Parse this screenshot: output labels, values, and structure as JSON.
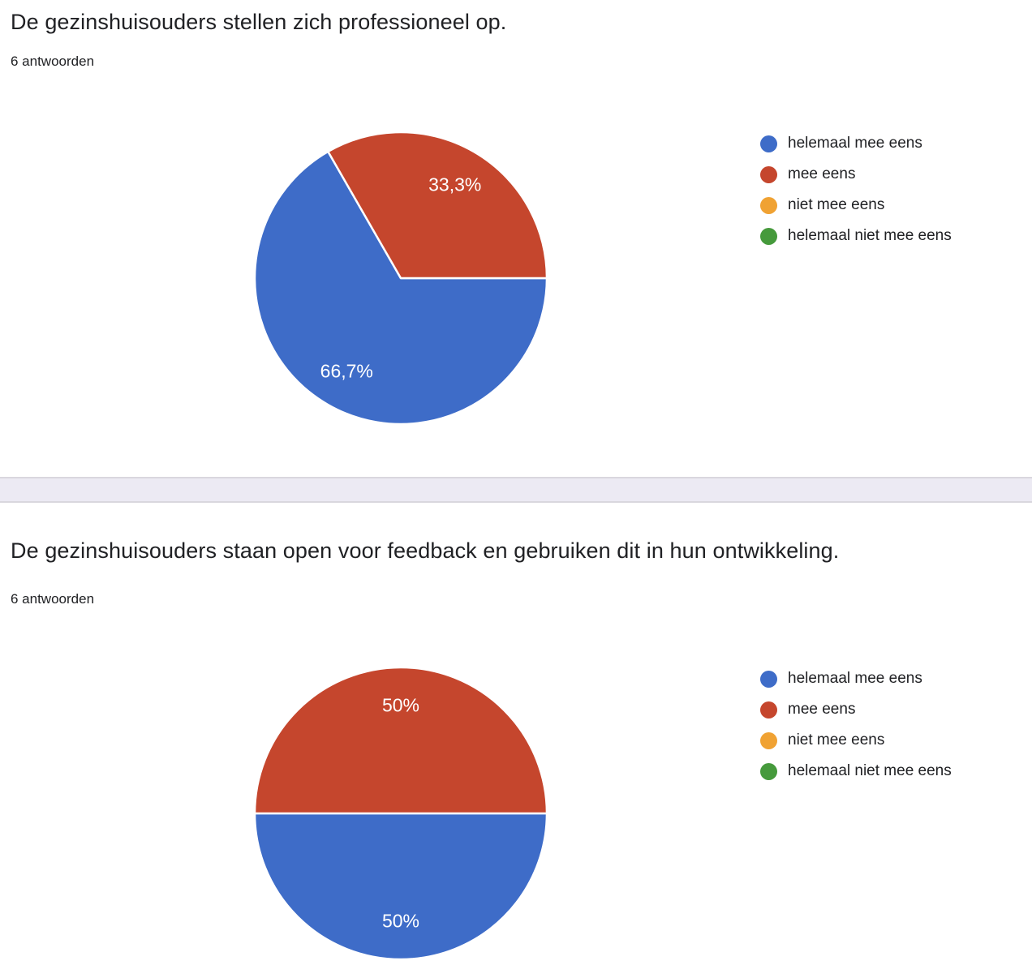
{
  "page": {
    "background": "#ffffff",
    "divider_fill": "#eceaf3",
    "divider_border": "#d9d7de"
  },
  "sections": [
    {
      "title": "De gezinshuisouders stellen zich professioneel op.",
      "answers_count": "6 antwoorden"
    },
    {
      "title": "De gezinshuisouders staan open voor feedback en gebruiken dit in hun ontwikkeling.",
      "answers_count": "6 antwoorden"
    }
  ],
  "chart_data": [
    {
      "type": "pie",
      "title": "De gezinshuisouders stellen zich professioneel op.",
      "subtitle": "6 antwoorden",
      "legend_position": "right",
      "start_angle": "east, clockwise",
      "categories": [
        "helemaal mee eens",
        "mee eens",
        "niet mee eens",
        "helemaal niet mee eens"
      ],
      "values": [
        66.7,
        33.3,
        0,
        0
      ],
      "slice_labels": [
        "66,7%",
        "33,3%",
        "",
        ""
      ],
      "colors": [
        "#3e6cc8",
        "#c5462d",
        "#f0a233",
        "#469a3c"
      ],
      "label_color": "#ffffff"
    },
    {
      "type": "pie",
      "title": "De gezinshuisouders staan open voor feedback en gebruiken dit in hun ontwikkeling.",
      "subtitle": "6 antwoorden",
      "legend_position": "right",
      "start_angle": "east, clockwise",
      "categories": [
        "helemaal mee eens",
        "mee eens",
        "niet mee eens",
        "helemaal niet mee eens"
      ],
      "values": [
        50,
        50,
        0,
        0
      ],
      "slice_labels": [
        "50%",
        "50%",
        "",
        ""
      ],
      "colors": [
        "#3e6cc8",
        "#c5462d",
        "#f0a233",
        "#469a3c"
      ],
      "label_color": "#ffffff"
    }
  ]
}
